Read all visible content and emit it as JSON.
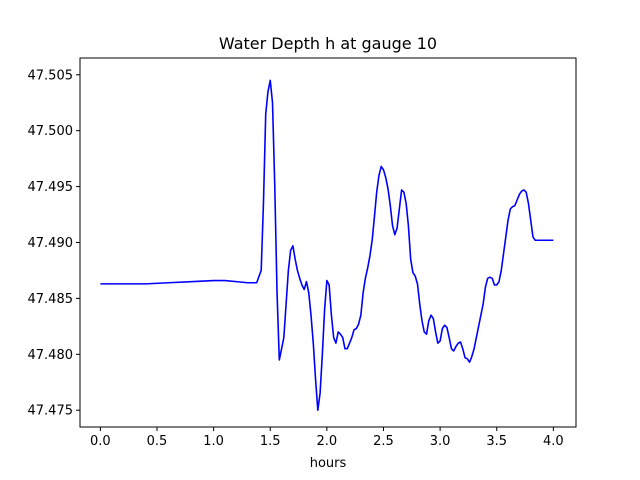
{
  "chart_data": {
    "type": "line",
    "title": "Water Depth h at gauge 10",
    "xlabel": "hours",
    "ylabel": "",
    "xlim": [
      -0.18,
      4.2
    ],
    "ylim": [
      47.4735,
      47.5065
    ],
    "xticks": [
      0.0,
      0.5,
      1.0,
      1.5,
      2.0,
      2.5,
      3.0,
      3.5,
      4.0
    ],
    "xtick_labels": [
      "0.0",
      "0.5",
      "1.0",
      "1.5",
      "2.0",
      "2.5",
      "3.0",
      "3.5",
      "4.0"
    ],
    "yticks": [
      47.475,
      47.48,
      47.485,
      47.49,
      47.495,
      47.5,
      47.505
    ],
    "ytick_labels": [
      "47.475",
      "47.480",
      "47.485",
      "47.490",
      "47.495",
      "47.500",
      "47.505"
    ],
    "grid": false,
    "line_color": "#0000ff",
    "series": [
      {
        "name": "",
        "x": [
          0.0,
          0.2,
          0.4,
          0.6,
          0.8,
          1.0,
          1.1,
          1.2,
          1.3,
          1.38,
          1.42,
          1.44,
          1.46,
          1.48,
          1.5,
          1.52,
          1.54,
          1.56,
          1.58,
          1.6,
          1.62,
          1.64,
          1.66,
          1.68,
          1.7,
          1.72,
          1.74,
          1.76,
          1.78,
          1.8,
          1.82,
          1.84,
          1.86,
          1.88,
          1.9,
          1.92,
          1.94,
          1.96,
          1.98,
          2.0,
          2.02,
          2.04,
          2.06,
          2.08,
          2.1,
          2.12,
          2.14,
          2.16,
          2.18,
          2.2,
          2.22,
          2.24,
          2.26,
          2.28,
          2.3,
          2.32,
          2.34,
          2.36,
          2.38,
          2.4,
          2.42,
          2.44,
          2.46,
          2.48,
          2.5,
          2.52,
          2.54,
          2.56,
          2.58,
          2.6,
          2.62,
          2.64,
          2.66,
          2.68,
          2.7,
          2.72,
          2.74,
          2.76,
          2.78,
          2.8,
          2.82,
          2.84,
          2.86,
          2.88,
          2.9,
          2.92,
          2.94,
          2.96,
          2.98,
          3.0,
          3.02,
          3.04,
          3.06,
          3.08,
          3.1,
          3.12,
          3.14,
          3.16,
          3.18,
          3.2,
          3.22,
          3.24,
          3.26,
          3.28,
          3.3,
          3.32,
          3.34,
          3.36,
          3.38,
          3.4,
          3.42,
          3.44,
          3.46,
          3.48,
          3.5,
          3.52,
          3.54,
          3.56,
          3.58,
          3.6,
          3.62,
          3.64,
          3.66,
          3.68,
          3.7,
          3.72,
          3.74,
          3.76,
          3.78,
          3.8,
          3.82,
          3.84,
          3.86,
          3.88,
          3.9,
          3.92,
          3.94,
          3.96,
          3.98,
          4.0
        ],
        "y": [
          47.4863,
          47.4863,
          47.4863,
          47.4864,
          47.4865,
          47.4866,
          47.4866,
          47.4865,
          47.4864,
          47.4864,
          47.4875,
          47.4935,
          47.5015,
          47.5035,
          47.5045,
          47.5025,
          47.495,
          47.4855,
          47.4795,
          47.4805,
          47.4815,
          47.4845,
          47.4875,
          47.4893,
          47.4897,
          47.4885,
          47.4875,
          47.4868,
          47.4862,
          47.4858,
          47.4865,
          47.4855,
          47.4835,
          47.481,
          47.4778,
          47.475,
          47.4765,
          47.48,
          47.484,
          47.4866,
          47.4862,
          47.4835,
          47.4815,
          47.481,
          47.482,
          47.4818,
          47.4815,
          47.4805,
          47.4805,
          47.481,
          47.4815,
          47.4822,
          47.4823,
          47.4827,
          47.4835,
          47.4855,
          47.4868,
          47.4877,
          47.4888,
          47.4902,
          47.4923,
          47.4945,
          47.496,
          47.4968,
          47.4965,
          47.4958,
          47.4948,
          47.4933,
          47.4915,
          47.4907,
          47.4913,
          47.493,
          47.4947,
          47.4945,
          47.4935,
          47.4915,
          47.4885,
          47.4873,
          47.487,
          47.4863,
          47.4845,
          47.483,
          47.482,
          47.4818,
          47.483,
          47.4835,
          47.4832,
          47.482,
          47.481,
          47.4812,
          47.4823,
          47.4826,
          47.4824,
          47.4815,
          47.4805,
          47.4803,
          47.4807,
          47.481,
          47.4811,
          47.4805,
          47.4797,
          47.4796,
          47.4793,
          47.4798,
          47.4805,
          47.4815,
          47.4825,
          47.4835,
          47.4845,
          47.486,
          47.4868,
          47.4869,
          47.4868,
          47.4862,
          47.4862,
          47.4865,
          47.4875,
          47.489,
          47.4905,
          47.492,
          47.493,
          47.4932,
          47.4933,
          47.4938,
          47.4943,
          47.4946,
          47.4947,
          47.4945,
          47.4935,
          47.492,
          47.4905,
          47.4902,
          47.4902,
          47.4902,
          47.4902,
          47.4902,
          47.4902,
          47.4902,
          47.4902,
          47.4902
        ]
      }
    ]
  }
}
